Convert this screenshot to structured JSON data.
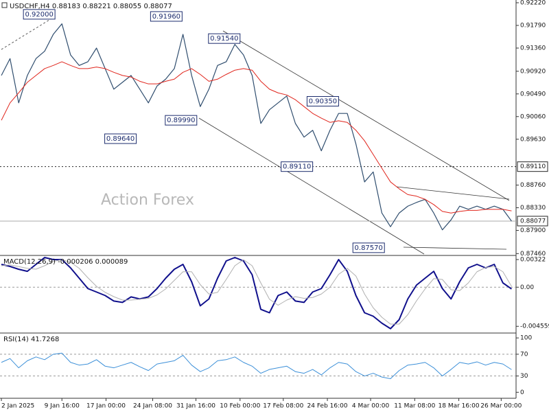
{
  "chart_data": [
    {
      "type": "line",
      "title": "USDCHF,H4  0.88183 0.88221 0.88055 0.88077",
      "watermark": "Action Forex",
      "xlim": [
        -0.16,
        59.52
      ],
      "xticks": [
        {
          "value": 0,
          "label": "2 Jan 2025"
        },
        {
          "value": 7,
          "label": "9 Jan 16:00"
        },
        {
          "value": 12.1,
          "label": "17 Jan 00:00"
        },
        {
          "value": 17.5,
          "label": "24 Jan 08:00"
        },
        {
          "value": 22.5,
          "label": "31 Jan 16:00"
        },
        {
          "value": 27.6,
          "label": "10 Feb 00:00"
        },
        {
          "value": 32.6,
          "label": "17 Feb 08:00"
        },
        {
          "value": 37.7,
          "label": "24 Feb 16:00"
        },
        {
          "value": 42.7,
          "label": "4 Mar 00:00"
        },
        {
          "value": 47.8,
          "label": "11 Mar 08:00"
        },
        {
          "value": 52.9,
          "label": "18 Mar 16:00"
        },
        {
          "value": 57.8,
          "label": "26 Mar 00:00"
        }
      ],
      "ylim": [
        0.87425,
        0.92272
      ],
      "yticks": [
        {
          "value": 0.9222,
          "label": "0.92220"
        },
        {
          "value": 0.9179,
          "label": "0.91790"
        },
        {
          "value": 0.9136,
          "label": "0.91360"
        },
        {
          "value": 0.9092,
          "label": "0.90920"
        },
        {
          "value": 0.9049,
          "label": "0.90490"
        },
        {
          "value": 0.9006,
          "label": "0.90060"
        },
        {
          "value": 0.8963,
          "label": "0.89630"
        },
        {
          "value": 0.8876,
          "label": "0.88760"
        },
        {
          "value": 0.8833,
          "label": "0.88330"
        },
        {
          "value": 0.879,
          "label": "0.87900"
        },
        {
          "value": 0.8746,
          "label": "0.87460"
        }
      ],
      "grid": false,
      "series": [
        {
          "color": "#2f4d6e",
          "line_width": 1.2,
          "values": [
            0.9084,
            0.9116,
            0.9032,
            0.9084,
            0.9116,
            0.913,
            0.9162,
            0.9182,
            0.9123,
            0.9103,
            0.911,
            0.9136,
            0.9097,
            0.9058,
            0.9071,
            0.9084,
            0.9058,
            0.9032,
            0.9064,
            0.9077,
            0.9097,
            0.9162,
            0.9084,
            0.9025,
            0.9058,
            0.9103,
            0.911,
            0.9143,
            0.9123,
            0.9084,
            0.8993,
            0.9019,
            0.9032,
            0.9045,
            0.8993,
            0.8967,
            0.898,
            0.8941,
            0.898,
            0.9012,
            0.9012,
            0.8954,
            0.8882,
            0.8901,
            0.8823,
            0.8797,
            0.8823,
            0.8836,
            0.8843,
            0.8849,
            0.8823,
            0.8791,
            0.881,
            0.8836,
            0.883,
            0.8836,
            0.883,
            0.8836,
            0.883,
            0.88077
          ]
        },
        {
          "color": "#e0241b",
          "line_width": 1,
          "values": [
            0.8999,
            0.9032,
            0.9051,
            0.9071,
            0.9084,
            0.9097,
            0.9103,
            0.911,
            0.9103,
            0.9097,
            0.9097,
            0.91,
            0.9097,
            0.909,
            0.9084,
            0.9081,
            0.9073,
            0.9068,
            0.9068,
            0.9073,
            0.9077,
            0.909,
            0.9097,
            0.9086,
            0.9073,
            0.9077,
            0.9086,
            0.9094,
            0.9097,
            0.9094,
            0.9073,
            0.9058,
            0.9051,
            0.9047,
            0.9038,
            0.9025,
            0.9012,
            0.9003,
            0.8995,
            0.8998,
            0.8995,
            0.898,
            0.896,
            0.8934,
            0.8908,
            0.8882,
            0.8869,
            0.8858,
            0.8855,
            0.8849,
            0.8839,
            0.8826,
            0.8823,
            0.8826,
            0.8828,
            0.8828,
            0.883,
            0.883,
            0.883,
            0.8827
          ]
        }
      ],
      "levels": [
        {
          "value": 0.8911,
          "label": "0.89110",
          "style": "dashed"
        },
        {
          "value": 0.88077,
          "label": "0.88077",
          "style": "solid"
        }
      ],
      "annotations": [
        {
          "label": "0.92000",
          "value": 0.92,
          "x": 6.2
        },
        {
          "label": "0.91960",
          "value": 0.9196,
          "x": 20.9
        },
        {
          "label": "0.91540",
          "value": 0.9154,
          "x": 27.6
        },
        {
          "label": "0.89640",
          "value": 0.8964,
          "x": 15.6
        },
        {
          "label": "0.89990",
          "value": 0.8999,
          "x": 22.6
        },
        {
          "label": "0.89110",
          "value": 0.8911,
          "x": 36
        },
        {
          "label": "0.90350",
          "value": 0.9035,
          "x": 39
        },
        {
          "label": "0.87570",
          "value": 0.8757,
          "x": 44.3
        }
      ]
    },
    {
      "type": "line",
      "title": "MACD(12,26,9) -0.000206 0.000089",
      "xlim": [
        -0.16,
        59.52
      ],
      "ylim": [
        -0.00534,
        0.0037
      ],
      "yticks": [
        {
          "value": 0.00322,
          "label": "0.00322"
        },
        {
          "value": 0,
          "label": "0.00"
        },
        {
          "value": -0.004559,
          "label": "-0.004559"
        }
      ],
      "grid": true,
      "series": [
        {
          "color": "#10108c",
          "line_width": 2,
          "values": [
            0.00266,
            0.00242,
            0.00209,
            0.00185,
            0.00266,
            0.00346,
            0.00322,
            0.00322,
            0.00225,
            0.00105,
            -0.00016,
            -0.00056,
            -0.00097,
            -0.00161,
            -0.00177,
            -0.00113,
            -0.00137,
            -0.00113,
            -0.00016,
            0.00105,
            0.00209,
            0.00266,
            0.00064,
            -0.00217,
            -0.00137,
            0.00105,
            0.00306,
            0.00346,
            0.00306,
            0.00145,
            -0.00258,
            -0.00298,
            -0.00097,
            -0.00056,
            -0.00161,
            -0.00177,
            -0.00056,
            -0.00016,
            0.00145,
            0.00322,
            0.00185,
            -0.00097,
            -0.00298,
            -0.00338,
            -0.00419,
            -0.00483,
            -0.00378,
            -0.00137,
            0.00024,
            0.00105,
            0.00185,
            -0.00016,
            -0.00137,
            0.00064,
            0.00225,
            0.00266,
            0.00225,
            0.00266,
            0.0005,
            -0.000206
          ]
        },
        {
          "color": "#b0b0b0",
          "line_width": 1,
          "values": [
            0.0025,
            0.0026,
            0.0024,
            0.0022,
            0.0021,
            0.0025,
            0.003,
            0.0032,
            0.0029,
            0.0022,
            0.0011,
            0.0001,
            -0.0006,
            -0.0011,
            -0.0015,
            -0.0015,
            -0.0014,
            -0.0013,
            -0.0009,
            -0.0002,
            0.0008,
            0.0018,
            0.0018,
            0.0003,
            -0.0008,
            -0.0006,
            0.0009,
            0.0025,
            0.0032,
            0.0025,
            0.0005,
            -0.0014,
            -0.0021,
            -0.0015,
            -0.0011,
            -0.0013,
            -0.0012,
            -0.0008,
            0,
            0.0015,
            0.0022,
            0.0013,
            -0.0008,
            -0.0024,
            -0.0035,
            -0.0043,
            -0.0043,
            -0.0032,
            -0.0016,
            -0.0002,
            0.001,
            0.0009,
            -0.0003,
            -0.0004,
            0.0005,
            0.0018,
            0.0023,
            0.0024,
            0.0018,
            8.9e-05
          ]
        }
      ]
    },
    {
      "type": "line",
      "title": "RSI(14) 41.7268",
      "xlim": [
        -0.16,
        59.52
      ],
      "ylim": [
        -11,
        109
      ],
      "yticks": [
        100,
        70,
        30,
        0
      ],
      "grid": true,
      "series": [
        {
          "color": "#3b8fd8",
          "line_width": 1,
          "values": [
            55,
            62,
            45,
            58,
            65,
            60,
            70,
            72,
            55,
            50,
            52,
            60,
            48,
            45,
            50,
            55,
            47,
            40,
            52,
            55,
            58,
            68,
            50,
            38,
            45,
            58,
            60,
            65,
            55,
            48,
            35,
            42,
            45,
            48,
            38,
            35,
            42,
            32,
            45,
            55,
            52,
            38,
            30,
            35,
            28,
            25,
            40,
            50,
            52,
            55,
            45,
            30,
            42,
            55,
            52,
            56,
            50,
            55,
            52,
            41.7268
          ]
        }
      ]
    }
  ]
}
